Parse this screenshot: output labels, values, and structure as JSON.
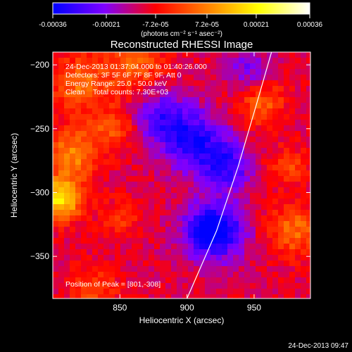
{
  "chart_data": {
    "type": "heatmap",
    "title": "Reconstructed RHESSI Image",
    "xlabel": "Heliocentric X (arcsec)",
    "ylabel": "Heliocentric Y (arcsec)",
    "xlim": [
      800,
      992
    ],
    "ylim": [
      -383,
      -190
    ],
    "xticks": [
      850,
      900,
      950
    ],
    "yticks": [
      -200,
      -250,
      -300,
      -350
    ],
    "colorbar": {
      "label": "(photons cm⁻² s⁻¹ asec⁻²)",
      "range": [
        -0.00036,
        0.00036
      ],
      "ticks": [
        "-0.00036",
        "-0.00021",
        "-7.2e-05",
        "7.2e-05",
        "0.00021",
        "0.00036"
      ],
      "stops": [
        "#0000ff",
        "#7f00ff",
        "#ff0000",
        "#ff8000",
        "#ffff00",
        "#ffffff"
      ]
    },
    "annotations": {
      "time": "24-Dec-2013 01:37:04.000 to 01:40:26.000",
      "detectors": "Detectors: 3F 5F 6F 7F 8F 9F, Att 0",
      "energy": "Energy Range: 25.0 - 50.0 keV",
      "clean": "Clean    Total counts: 7.30E+03",
      "peak": "Position of Peak = [801,-308]"
    },
    "limb_curve": [
      [
        900,
        -383
      ],
      [
        922,
        -330
      ],
      [
        938,
        -280
      ],
      [
        952,
        -230
      ],
      [
        963,
        -190
      ]
    ],
    "source_regions": [
      {
        "x": 806,
        "y": -305,
        "r": 16,
        "level": 1.0
      },
      {
        "x": 815,
        "y": -270,
        "r": 20,
        "level": 0.6
      },
      {
        "x": 820,
        "y": -215,
        "r": 22,
        "level": 0.5
      },
      {
        "x": 860,
        "y": -200,
        "r": 22,
        "level": 0.45
      },
      {
        "x": 845,
        "y": -250,
        "r": 16,
        "level": 0.4
      },
      {
        "x": 955,
        "y": -230,
        "r": 18,
        "level": 0.45
      },
      {
        "x": 980,
        "y": -330,
        "r": 20,
        "level": 0.5
      },
      {
        "x": 975,
        "y": -280,
        "r": 15,
        "level": 0.35
      },
      {
        "x": 850,
        "y": -320,
        "r": 14,
        "level": 0.3
      },
      {
        "x": 830,
        "y": -375,
        "r": 18,
        "level": 0.35
      },
      {
        "x": 920,
        "y": -330,
        "r": 22,
        "level": -1.0
      },
      {
        "x": 905,
        "y": -260,
        "r": 24,
        "level": -0.7
      },
      {
        "x": 880,
        "y": -240,
        "r": 20,
        "level": -0.5
      },
      {
        "x": 930,
        "y": -280,
        "r": 18,
        "level": -0.6
      },
      {
        "x": 945,
        "y": -205,
        "r": 16,
        "level": -0.4
      }
    ]
  },
  "footer": {
    "timestamp": "24-Dec-2013 09:47"
  }
}
